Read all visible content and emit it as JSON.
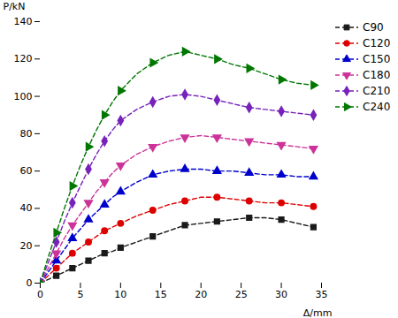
{
  "chart_data": {
    "type": "line",
    "xlabel": "Δ/mm",
    "ylabel": "P/kN",
    "x": [
      0,
      1,
      2,
      3,
      4,
      5,
      6,
      7,
      8,
      9,
      10,
      12,
      14,
      16,
      18,
      20,
      22,
      24,
      26,
      28,
      30,
      32,
      34
    ],
    "series": [
      {
        "name": "C90",
        "color": "#1a1a1a",
        "marker": "square",
        "line_style": "dashed",
        "values": [
          0,
          2,
          4,
          6,
          8,
          10,
          12,
          14,
          16,
          17,
          19,
          22,
          25,
          28,
          31,
          32,
          33,
          34,
          35,
          35,
          34,
          32,
          30
        ]
      },
      {
        "name": "C120",
        "color": "#dd0000",
        "marker": "circle",
        "line_style": "dashed",
        "values": [
          0,
          4,
          8,
          12,
          16,
          19,
          22,
          25,
          28,
          30,
          32,
          36,
          39,
          42,
          44,
          46,
          46,
          45,
          44,
          43,
          43,
          42,
          41
        ]
      },
      {
        "name": "C150",
        "color": "#0000cc",
        "marker": "triangle-up",
        "line_style": "dashed",
        "values": [
          0,
          6,
          12,
          18,
          24,
          29,
          34,
          38,
          42,
          46,
          49,
          54,
          58,
          60,
          61,
          61,
          60,
          60,
          59,
          58,
          58,
          57,
          57
        ]
      },
      {
        "name": "C180",
        "color": "#cc3399",
        "marker": "triangle-down",
        "line_style": "dashed",
        "values": [
          0,
          8,
          16,
          24,
          31,
          37,
          43,
          49,
          54,
          59,
          63,
          69,
          73,
          76,
          78,
          79,
          78,
          77,
          76,
          75,
          74,
          73,
          72
        ]
      },
      {
        "name": "C210",
        "color": "#7722bb",
        "marker": "diamond",
        "line_style": "dashed",
        "values": [
          0,
          11,
          22,
          33,
          43,
          52,
          61,
          69,
          76,
          82,
          87,
          93,
          97,
          100,
          101,
          100,
          98,
          96,
          94,
          93,
          92,
          91,
          90
        ]
      },
      {
        "name": "C240",
        "color": "#007700",
        "marker": "triangle-right",
        "line_style": "dashed",
        "values": [
          0,
          14,
          27,
          40,
          52,
          63,
          73,
          82,
          90,
          97,
          103,
          112,
          118,
          122,
          124,
          122,
          120,
          117,
          115,
          112,
          109,
          107,
          106
        ]
      }
    ],
    "xlim": [
      0,
      35
    ],
    "ylim": [
      0,
      140
    ],
    "xticks": [
      0,
      5,
      10,
      15,
      20,
      25,
      30,
      35
    ],
    "yticks": [
      0,
      20,
      40,
      60,
      80,
      100,
      120,
      140
    ],
    "legend": "right",
    "grid": false
  }
}
